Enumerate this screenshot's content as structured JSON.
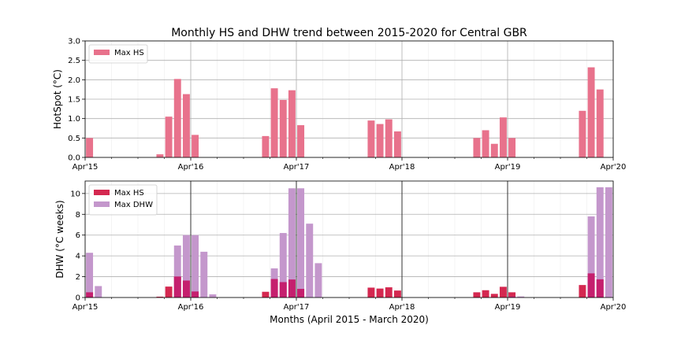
{
  "chart_data": [
    {
      "type": "bar",
      "title": "Monthly HS and DHW trend between 2015-2020 for Central GBR",
      "ylabel": "HotSpot (°C)",
      "xlabel": "",
      "ylim": [
        0,
        3.0
      ],
      "yticks": [
        "0.0",
        "0.5",
        "1.0",
        "1.5",
        "2.0",
        "2.5",
        "3.0"
      ],
      "xtick_labels": [
        "Apr'15",
        "Apr'16",
        "Apr'17",
        "Apr'18",
        "Apr'19",
        "Apr'20"
      ],
      "grid": true,
      "legend_position": "top-left",
      "series": [
        {
          "name": "Max HS",
          "color": "#e8728c",
          "values": [
            0.5,
            0,
            0,
            0,
            0,
            0,
            0,
            0,
            0.08,
            1.05,
            2.02,
            1.63,
            0.58,
            0,
            0,
            0,
            0,
            0,
            0,
            0,
            0.55,
            1.78,
            1.48,
            1.73,
            0.83,
            0,
            0,
            0,
            0,
            0,
            0,
            0,
            0.95,
            0.86,
            0.98,
            0.67,
            0,
            0,
            0,
            0,
            0,
            0,
            0,
            0,
            0.5,
            0.7,
            0.35,
            1.03,
            0.5,
            0,
            0,
            0,
            0,
            0,
            0,
            0,
            1.2,
            2.32,
            1.75,
            0
          ]
        }
      ]
    },
    {
      "type": "bar",
      "title": "",
      "ylabel": "DHW (°C weeks)",
      "xlabel": "Months (April 2015 - March 2020)",
      "ylim": [
        0,
        11.2
      ],
      "yticks": [
        "0",
        "2",
        "4",
        "6",
        "8",
        "10"
      ],
      "xtick_labels": [
        "Apr'15",
        "Apr'16",
        "Apr'17",
        "Apr'18",
        "Apr'19",
        "Apr'20"
      ],
      "grid": true,
      "legend_position": "top-left",
      "series": [
        {
          "name": "Max HS",
          "color": "#d42850",
          "values": [
            0.5,
            0,
            0,
            0,
            0,
            0,
            0,
            0,
            0.08,
            1.05,
            2.02,
            1.63,
            0.58,
            0,
            0,
            0,
            0,
            0,
            0,
            0,
            0.55,
            1.78,
            1.48,
            1.73,
            0.83,
            0,
            0,
            0,
            0,
            0,
            0,
            0,
            0.95,
            0.86,
            0.98,
            0.67,
            0,
            0,
            0,
            0,
            0,
            0,
            0,
            0,
            0.5,
            0.7,
            0.35,
            1.03,
            0.5,
            0,
            0,
            0,
            0,
            0,
            0,
            0,
            1.2,
            2.32,
            1.75,
            0
          ]
        },
        {
          "name": "Max DHW",
          "color": "#c497cc",
          "values": [
            4.3,
            1.1,
            0,
            0,
            0,
            0,
            0,
            0,
            0,
            0,
            5.0,
            6.0,
            6.0,
            4.4,
            0.3,
            0,
            0,
            0,
            0,
            0,
            0,
            2.8,
            6.2,
            10.5,
            10.5,
            7.1,
            3.3,
            0,
            0,
            0,
            0,
            0,
            0,
            0,
            0,
            0,
            0,
            0,
            0,
            0,
            0,
            0,
            0,
            0,
            0,
            0,
            0,
            0,
            0.1,
            0.1,
            0,
            0,
            0,
            0,
            0,
            0,
            0,
            7.8,
            10.6,
            10.6
          ]
        }
      ],
      "vertical_markers": [
        "Apr'16",
        "Apr'17",
        "Apr'18",
        "Apr'19"
      ]
    }
  ]
}
